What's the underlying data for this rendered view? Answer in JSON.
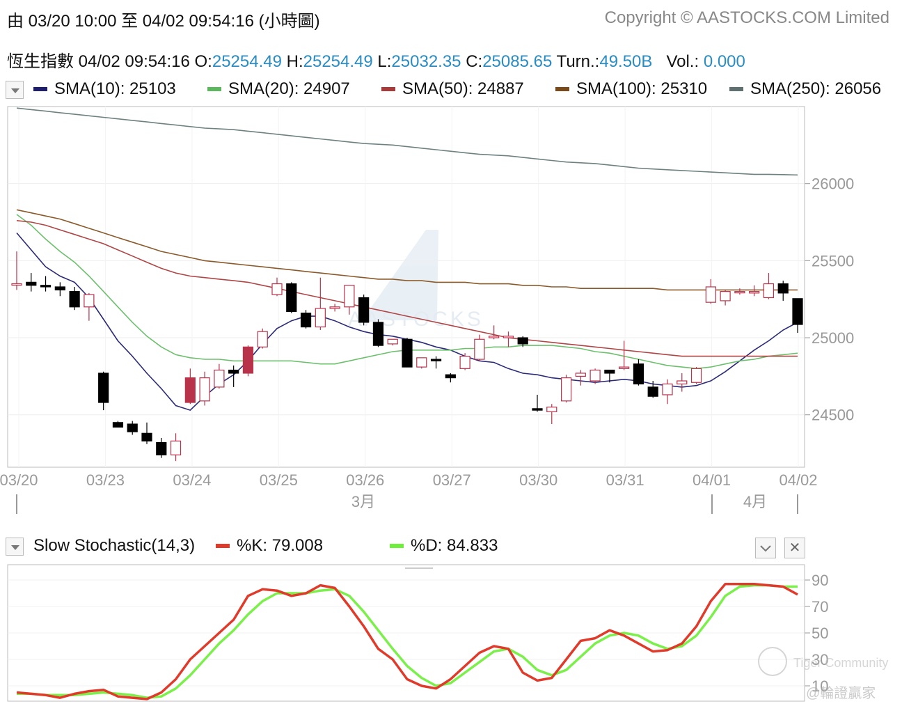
{
  "header": {
    "range_text": "由  03/20 10:00 至  04/02 09:54:16 (小時圖)",
    "copyright": "Copyright © AASTOCKS.COM Limited"
  },
  "quote": {
    "name": "恆生指數",
    "time": "04/02 09:54:16",
    "o_label": "O:",
    "o": "25254.49",
    "h_label": "H:",
    "h": "25254.49",
    "l_label": "L:",
    "l": "25032.35",
    "c_label": "C:",
    "c": "25085.65",
    "turn_label": "Turn.:",
    "turn": "49.50B",
    "vol_label": "Vol.:",
    "vol": "0.000"
  },
  "sma_legend": [
    {
      "label": "SMA(10): 25103",
      "color": "#1e1e6e"
    },
    {
      "label": "SMA(20): 24907",
      "color": "#5cb85c"
    },
    {
      "label": "SMA(50): 24887",
      "color": "#a83a3a"
    },
    {
      "label": "SMA(100): 25310",
      "color": "#7a4a1a"
    },
    {
      "label": "SMA(250): 26056",
      "color": "#5f7070"
    }
  ],
  "stoch_legend": {
    "title": "Slow Stochastic(14,3)",
    "k_label": "%K: 79.008",
    "k_color": "#e03a2a",
    "d_label": "%D: 84.833",
    "d_color": "#6ef03a"
  },
  "controls": {
    "collapse_icon": "chevron-down-icon",
    "close_icon": "close-icon",
    "close_glyph": "✕"
  },
  "watermark": {
    "brand": "AASTOCKS",
    "tiger": "Tiger Community",
    "author": "@輪證贏家"
  },
  "chart_data": [
    {
      "type": "candlestick",
      "y_ticks": [
        26000,
        25500,
        25000,
        24500
      ],
      "ylim": [
        24160,
        26500
      ],
      "x_tick_labels": [
        "03/20",
        "03/23",
        "03/24",
        "03/25",
        "03/26",
        "03/27",
        "03/30",
        "03/31",
        "04/01",
        "04/02"
      ],
      "month_labels": [
        "3月",
        "4月"
      ],
      "up_color": "#b8324a",
      "down_color": "#000000",
      "candles": [
        {
          "o": 25350,
          "h": 25560,
          "l": 25310,
          "c": 25350
        },
        {
          "o": 25360,
          "h": 25420,
          "l": 25300,
          "c": 25340
        },
        {
          "o": 25340,
          "h": 25400,
          "l": 25300,
          "c": 25330
        },
        {
          "o": 25330,
          "h": 25360,
          "l": 25270,
          "c": 25310
        },
        {
          "o": 25300,
          "h": 25330,
          "l": 25180,
          "c": 25200
        },
        {
          "o": 25200,
          "h": 25290,
          "l": 25110,
          "c": 25280
        },
        {
          "o": 24770,
          "h": 24780,
          "l": 24530,
          "c": 24580
        },
        {
          "o": 24450,
          "h": 24460,
          "l": 24420,
          "c": 24420
        },
        {
          "o": 24440,
          "h": 24460,
          "l": 24370,
          "c": 24390
        },
        {
          "o": 24380,
          "h": 24450,
          "l": 24310,
          "c": 24330
        },
        {
          "o": 24320,
          "h": 24350,
          "l": 24220,
          "c": 24240
        },
        {
          "o": 24240,
          "h": 24380,
          "l": 24200,
          "c": 24330
        },
        {
          "o": 24580,
          "h": 24800,
          "l": 24570,
          "c": 24740
        },
        {
          "o": 24590,
          "h": 24780,
          "l": 24560,
          "c": 24740
        },
        {
          "o": 24680,
          "h": 24830,
          "l": 24670,
          "c": 24790
        },
        {
          "o": 24790,
          "h": 24820,
          "l": 24680,
          "c": 24770
        },
        {
          "o": 24770,
          "h": 24950,
          "l": 24750,
          "c": 24940
        },
        {
          "o": 24940,
          "h": 25060,
          "l": 24930,
          "c": 25040
        },
        {
          "o": 25280,
          "h": 25390,
          "l": 25270,
          "c": 25350
        },
        {
          "o": 25350,
          "h": 25360,
          "l": 25160,
          "c": 25170
        },
        {
          "o": 25160,
          "h": 25180,
          "l": 25060,
          "c": 25070
        },
        {
          "o": 25070,
          "h": 25390,
          "l": 25050,
          "c": 25190
        },
        {
          "o": 25190,
          "h": 25220,
          "l": 25170,
          "c": 25200
        },
        {
          "o": 25200,
          "h": 25340,
          "l": 25150,
          "c": 25340
        },
        {
          "o": 25260,
          "h": 25280,
          "l": 25080,
          "c": 25100
        },
        {
          "o": 25100,
          "h": 25120,
          "l": 24940,
          "c": 24950
        },
        {
          "o": 24960,
          "h": 24990,
          "l": 24950,
          "c": 24990
        },
        {
          "o": 24990,
          "h": 25000,
          "l": 24810,
          "c": 24810
        },
        {
          "o": 24810,
          "h": 24870,
          "l": 24800,
          "c": 24870
        },
        {
          "o": 24860,
          "h": 24880,
          "l": 24800,
          "c": 24850
        },
        {
          "o": 24760,
          "h": 24770,
          "l": 24710,
          "c": 24740
        },
        {
          "o": 24800,
          "h": 24900,
          "l": 24790,
          "c": 24880
        },
        {
          "o": 24860,
          "h": 25020,
          "l": 24850,
          "c": 24990
        },
        {
          "o": 25000,
          "h": 25080,
          "l": 24990,
          "c": 25010
        },
        {
          "o": 25000,
          "h": 25040,
          "l": 24940,
          "c": 25010
        },
        {
          "o": 25000,
          "h": 25010,
          "l": 24940,
          "c": 24960
        },
        {
          "o": 24540,
          "h": 24630,
          "l": 24520,
          "c": 24530
        },
        {
          "o": 24520,
          "h": 24570,
          "l": 24440,
          "c": 24550
        },
        {
          "o": 24590,
          "h": 24760,
          "l": 24580,
          "c": 24740
        },
        {
          "o": 24750,
          "h": 24790,
          "l": 24690,
          "c": 24770
        },
        {
          "o": 24720,
          "h": 24800,
          "l": 24700,
          "c": 24790
        },
        {
          "o": 24790,
          "h": 24790,
          "l": 24710,
          "c": 24770
        },
        {
          "o": 24800,
          "h": 24980,
          "l": 24790,
          "c": 24810
        },
        {
          "o": 24830,
          "h": 24860,
          "l": 24690,
          "c": 24700
        },
        {
          "o": 24680,
          "h": 24720,
          "l": 24610,
          "c": 24620
        },
        {
          "o": 24630,
          "h": 24730,
          "l": 24570,
          "c": 24700
        },
        {
          "o": 24700,
          "h": 24770,
          "l": 24650,
          "c": 24720
        },
        {
          "o": 24710,
          "h": 24810,
          "l": 24700,
          "c": 24800
        },
        {
          "o": 25230,
          "h": 25380,
          "l": 25220,
          "c": 25330
        },
        {
          "o": 25240,
          "h": 25310,
          "l": 25210,
          "c": 25300
        },
        {
          "o": 25300,
          "h": 25320,
          "l": 25280,
          "c": 25300
        },
        {
          "o": 25290,
          "h": 25340,
          "l": 25270,
          "c": 25300
        },
        {
          "o": 25260,
          "h": 25420,
          "l": 25250,
          "c": 25350
        },
        {
          "o": 25350,
          "h": 25370,
          "l": 25240,
          "c": 25290
        },
        {
          "o": 25254,
          "h": 25254,
          "l": 25032,
          "c": 25086
        }
      ],
      "series": [
        {
          "name": "SMA(10)",
          "color": "#2a2a78",
          "values": [
            25680,
            25570,
            25460,
            25400,
            25360,
            25260,
            25120,
            24980,
            24880,
            24770,
            24670,
            24560,
            24530,
            24620,
            24700,
            24760,
            24850,
            24960,
            25060,
            25110,
            25140,
            25140,
            25110,
            25070,
            25040,
            25020,
            25010,
            24990,
            24970,
            24940,
            24920,
            24880,
            24850,
            24840,
            24800,
            24770,
            24760,
            24740,
            24730,
            24720,
            24710,
            24720,
            24730,
            24720,
            24700,
            24690,
            24680,
            24690,
            24720,
            24780,
            24850,
            24920,
            24980,
            25050,
            25100
          ]
        },
        {
          "name": "SMA(20)",
          "color": "#6cc06c",
          "values": [
            25800,
            25730,
            25640,
            25560,
            25490,
            25400,
            25300,
            25200,
            25100,
            25010,
            24940,
            24890,
            24870,
            24860,
            24860,
            24850,
            24850,
            24850,
            24850,
            24850,
            24840,
            24830,
            24830,
            24850,
            24870,
            24890,
            24910,
            24920,
            24920,
            24920,
            24920,
            24930,
            24930,
            24940,
            24940,
            24950,
            24950,
            24950,
            24940,
            24930,
            24910,
            24900,
            24880,
            24860,
            24840,
            24820,
            24810,
            24800,
            24810,
            24830,
            24850,
            24860,
            24880,
            24890,
            24900
          ]
        },
        {
          "name": "SMA(50)",
          "color": "#b04545",
          "values": [
            25760,
            25750,
            25730,
            25700,
            25670,
            25640,
            25610,
            25570,
            25530,
            25490,
            25450,
            25420,
            25400,
            25390,
            25380,
            25370,
            25360,
            25340,
            25320,
            25300,
            25280,
            25260,
            25240,
            25220,
            25200,
            25180,
            25160,
            25140,
            25120,
            25100,
            25080,
            25060,
            25040,
            25020,
            25000,
            24990,
            24980,
            24970,
            24960,
            24950,
            24940,
            24930,
            24920,
            24910,
            24900,
            24890,
            24880,
            24880,
            24880,
            24880,
            24880,
            24880,
            24880,
            24880,
            24880
          ]
        },
        {
          "name": "SMA(100)",
          "color": "#8a5a2a",
          "values": [
            25830,
            25810,
            25790,
            25770,
            25740,
            25710,
            25680,
            25650,
            25620,
            25590,
            25560,
            25540,
            25520,
            25500,
            25490,
            25480,
            25470,
            25460,
            25450,
            25440,
            25430,
            25420,
            25410,
            25400,
            25390,
            25380,
            25380,
            25370,
            25370,
            25360,
            25360,
            25360,
            25350,
            25350,
            25350,
            25340,
            25340,
            25330,
            25330,
            25320,
            25320,
            25320,
            25320,
            25320,
            25320,
            25310,
            25310,
            25310,
            25310,
            25310,
            25310,
            25310,
            25310,
            25310,
            25310
          ]
        },
        {
          "name": "SMA(250)",
          "color": "#6f8080",
          "values": [
            26490,
            26480,
            26470,
            26460,
            26450,
            26440,
            26430,
            26420,
            26410,
            26400,
            26390,
            26380,
            26370,
            26360,
            26355,
            26350,
            26340,
            26330,
            26320,
            26310,
            26300,
            26290,
            26280,
            26270,
            26260,
            26255,
            26250,
            26240,
            26230,
            26220,
            26210,
            26200,
            26190,
            26185,
            26180,
            26170,
            26160,
            26150,
            26140,
            26135,
            26130,
            26120,
            26110,
            26100,
            26095,
            26090,
            26085,
            26080,
            26075,
            26070,
            26065,
            26060,
            26060,
            26058,
            26056
          ]
        }
      ]
    },
    {
      "type": "line",
      "title": "Slow Stochastic(14,3)",
      "y_ticks": [
        90,
        70,
        50,
        30,
        10
      ],
      "ylim": [
        0,
        100
      ],
      "series": [
        {
          "name": "%K",
          "color": "#e03a2a",
          "values": [
            5,
            4,
            3,
            1,
            4,
            6,
            7,
            2,
            1,
            0,
            5,
            15,
            30,
            40,
            50,
            60,
            78,
            83,
            82,
            78,
            80,
            86,
            84,
            70,
            55,
            38,
            30,
            15,
            10,
            8,
            15,
            25,
            35,
            40,
            38,
            20,
            14,
            16,
            30,
            44,
            46,
            52,
            48,
            42,
            36,
            37,
            42,
            55,
            74,
            87,
            87,
            87,
            86,
            85,
            79
          ]
        },
        {
          "name": "%D",
          "color": "#7cf04a",
          "values": [
            4,
            4,
            3,
            3,
            3,
            4,
            5,
            4,
            3,
            1,
            2,
            8,
            18,
            30,
            42,
            52,
            64,
            74,
            80,
            80,
            80,
            82,
            83,
            78,
            66,
            52,
            38,
            25,
            16,
            10,
            12,
            20,
            28,
            36,
            38,
            32,
            22,
            18,
            22,
            32,
            42,
            48,
            50,
            48,
            42,
            38,
            40,
            48,
            62,
            78,
            85,
            86,
            86,
            85,
            85
          ]
        }
      ]
    }
  ]
}
